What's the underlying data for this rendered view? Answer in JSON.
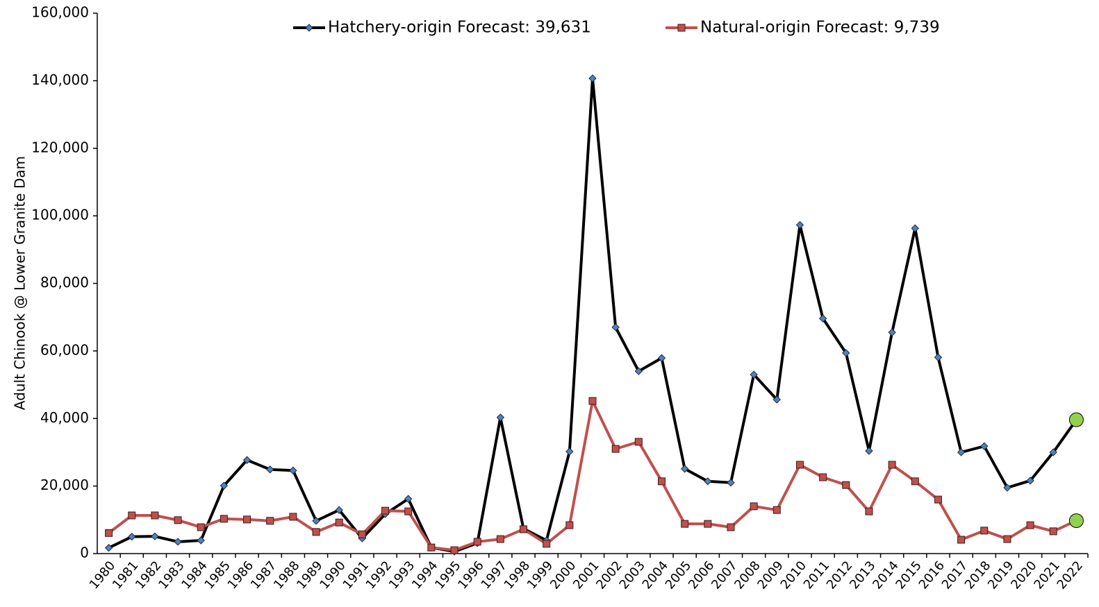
{
  "chart_data": {
    "type": "line",
    "y_label": "Adult Chinook @ Lower Granite Dam",
    "categories": [
      "1980",
      "1981",
      "1982",
      "1983",
      "1984",
      "1985",
      "1986",
      "1987",
      "1988",
      "1989",
      "1990",
      "1991",
      "1992",
      "1993",
      "1994",
      "1995",
      "1996",
      "1997",
      "1998",
      "1999",
      "2000",
      "2001",
      "2002",
      "2003",
      "2004",
      "2005",
      "2006",
      "2007",
      "2008",
      "2009",
      "2010",
      "2011",
      "2012",
      "2013",
      "2014",
      "2015",
      "2016",
      "2017",
      "2018",
      "2019",
      "2020",
      "2021",
      "2022"
    ],
    "series": [
      {
        "name": "Hatchery-origin Forecast: 39,631",
        "color": "#000000",
        "marker": "diamond",
        "marker_color": "#4f81bd",
        "values": [
          1700,
          5000,
          5100,
          3500,
          3900,
          20100,
          27700,
          24900,
          24600,
          9700,
          12900,
          4500,
          11700,
          16200,
          1800,
          600,
          3100,
          40300,
          7400,
          3900,
          30200,
          140700,
          67000,
          54000,
          57900,
          25100,
          21400,
          21000,
          53000,
          45600,
          97300,
          69600,
          59400,
          30400,
          65500,
          96300,
          58100,
          30000,
          31800,
          19500,
          21600,
          30000,
          39631
        ]
      },
      {
        "name": "Natural-origin Forecast: 9,739",
        "color": "#c0504d",
        "marker": "square",
        "marker_color": "#c0504d",
        "values": [
          6100,
          11300,
          11300,
          9900,
          7800,
          10300,
          10100,
          9700,
          10900,
          6400,
          9200,
          5700,
          12700,
          12500,
          1800,
          1000,
          3500,
          4300,
          7200,
          2900,
          8400,
          45200,
          31000,
          33100,
          21400,
          8800,
          8800,
          7800,
          14000,
          12900,
          26300,
          22600,
          20300,
          12500,
          26300,
          21400,
          16000,
          4100,
          6800,
          4300,
          8400,
          6600,
          9739
        ]
      }
    ],
    "forecast_color": "#92d050",
    "ylim": [
      0,
      160000
    ],
    "yticks": [
      0,
      {
        "value": 20000,
        "label": "20,000"
      },
      {
        "value": 40000,
        "label": "40,000"
      },
      {
        "value": 60000,
        "label": "60,000"
      },
      {
        "value": 80000,
        "label": "80,000"
      },
      {
        "value": 100000,
        "label": "100,000"
      },
      {
        "value": 120000,
        "label": "120,000"
      },
      {
        "value": 140000,
        "label": "140,000"
      },
      {
        "value": 160000,
        "label": "160,000"
      }
    ],
    "grid": false
  }
}
